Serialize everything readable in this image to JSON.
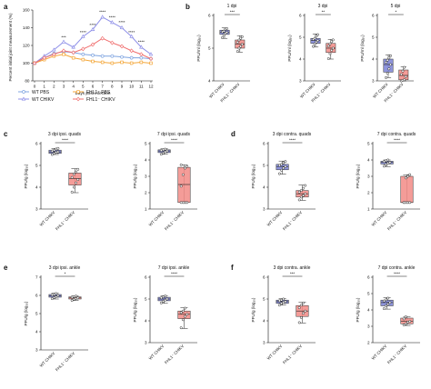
{
  "colors": {
    "wt_pbs": "#7fa4e0",
    "fhl1_pbs": "#f4a73a",
    "wt_chikv": "#8f90e8",
    "fhl1_chikv": "#f07070",
    "wt_box": "#7b83d6",
    "fhl1_box": "#f28b86"
  },
  "chart_data": [
    {
      "panel": "a",
      "type": "line",
      "ylabel": "Percent initial joint measurement (%)",
      "xlabel": "Days post infection",
      "ylim": [
        80,
        160
      ],
      "yticks": [
        "80",
        "100",
        "120",
        "140",
        "160"
      ],
      "x": [
        0,
        1,
        2,
        3,
        4,
        5,
        6,
        7,
        8,
        9,
        10,
        11,
        12
      ],
      "series": [
        {
          "name": "WT PBS",
          "color_key": "wt_pbs",
          "values": [
            100,
            106,
            111,
            113,
            112,
            110,
            109,
            108,
            108,
            107,
            106,
            106,
            105
          ]
        },
        {
          "name": "FHL1⁻ PBS",
          "color_key": "fhl1_pbs",
          "values": [
            100,
            104,
            108,
            110,
            106,
            104,
            102,
            101,
            100,
            101,
            100,
            101,
            100
          ]
        },
        {
          "name": "WT CHIKV",
          "color_key": "wt_chikv",
          "values": [
            100,
            108,
            115,
            124,
            118,
            130,
            138,
            152,
            146,
            140,
            130,
            118,
            110
          ]
        },
        {
          "name": "FHL1⁻ CHIKV",
          "color_key": "fhl1_chikv",
          "values": [
            100,
            106,
            110,
            114,
            112,
            116,
            121,
            128,
            123,
            119,
            114,
            110,
            105
          ]
        }
      ],
      "significance": [
        {
          "x": 3,
          "y": 129,
          "label": "***"
        },
        {
          "x": 5,
          "y": 135,
          "label": "****"
        },
        {
          "x": 6,
          "y": 143,
          "label": "****"
        },
        {
          "x": 7,
          "y": 158,
          "label": "****"
        },
        {
          "x": 8,
          "y": 152,
          "label": "****"
        },
        {
          "x": 9,
          "y": 146,
          "label": "****"
        },
        {
          "x": 10,
          "y": 135,
          "label": "****"
        },
        {
          "x": 11,
          "y": 124,
          "label": "****"
        }
      ],
      "legend": [
        "WT PBS",
        "FHL1⁻ PBS",
        "WT CHIKV",
        "FHL1⁻ CHIKV"
      ]
    },
    {
      "panel": "b",
      "type": "box",
      "title": "1 dpi",
      "ylabel": "PFU/ml (log₁₀)",
      "ylim": [
        4,
        6
      ],
      "yticks": [
        "4",
        "5",
        "6"
      ],
      "categories": [
        "WT CHIKV",
        "FHL1⁻ CHIKV"
      ],
      "significance": "***",
      "boxes": [
        {
          "min": 5.3,
          "q1": 5.42,
          "median": 5.48,
          "q3": 5.55,
          "max": 5.62,
          "points": [
            5.32,
            5.4,
            5.45,
            5.48,
            5.5,
            5.52,
            5.58,
            5.6
          ]
        },
        {
          "min": 4.88,
          "q1": 5.0,
          "median": 5.12,
          "q3": 5.25,
          "max": 5.38,
          "points": [
            4.9,
            5.0,
            5.05,
            5.12,
            5.18,
            5.25,
            5.3,
            5.35
          ]
        }
      ]
    },
    {
      "panel": "b",
      "type": "box",
      "title": "3 dpi",
      "ylabel": "PFU/ml (log₁₀)",
      "ylim": [
        3,
        6
      ],
      "yticks": [
        "3",
        "4",
        "5",
        "6"
      ],
      "categories": [
        "WT CHIKV",
        "FHL1⁻ CHIKV"
      ],
      "significance": "**",
      "boxes": [
        {
          "min": 4.55,
          "q1": 4.72,
          "median": 4.85,
          "q3": 4.95,
          "max": 5.15,
          "points": [
            4.58,
            4.7,
            4.78,
            4.85,
            4.9,
            4.95,
            5.05,
            5.12
          ]
        },
        {
          "min": 4.0,
          "q1": 4.3,
          "median": 4.5,
          "q3": 4.72,
          "max": 4.9,
          "points": [
            4.02,
            4.25,
            4.4,
            4.5,
            4.6,
            4.7,
            4.8,
            4.88
          ]
        }
      ]
    },
    {
      "panel": "b",
      "type": "box",
      "title": "5 dpi",
      "ylabel": "PFU/ml (log₁₀)",
      "ylim": [
        3,
        6
      ],
      "yticks": [
        "3",
        "4",
        "5",
        "6"
      ],
      "categories": [
        "WT CHIKV",
        "FHL1⁻ CHIKV"
      ],
      "significance": "*",
      "boxes": [
        {
          "min": 3.15,
          "q1": 3.4,
          "median": 3.75,
          "q3": 4.0,
          "max": 4.2,
          "points": [
            3.15,
            3.35,
            3.55,
            3.75,
            3.85,
            3.95,
            4.05,
            4.15
          ]
        },
        {
          "min": 3.0,
          "q1": 3.05,
          "median": 3.25,
          "q3": 3.5,
          "max": 3.65,
          "points": [
            3.0,
            3.02,
            3.05,
            3.2,
            3.3,
            3.45,
            3.62
          ]
        }
      ]
    },
    {
      "panel": "c",
      "type": "box",
      "title": "3 dpi ipsi. quads",
      "ylabel": "PFU/g (log₁₀)",
      "ylim": [
        3,
        6
      ],
      "yticks": [
        "3",
        "4",
        "5",
        "6"
      ],
      "categories": [
        "WT CHIKV",
        "FHL1⁻ CHIKV"
      ],
      "significance": "****",
      "boxes": [
        {
          "min": 5.5,
          "q1": 5.55,
          "median": 5.62,
          "q3": 5.7,
          "max": 5.78,
          "points": [
            5.5,
            5.55,
            5.6,
            5.62,
            5.66,
            5.7,
            5.75,
            5.78
          ]
        },
        {
          "min": 3.75,
          "q1": 4.1,
          "median": 4.4,
          "q3": 4.65,
          "max": 4.85,
          "points": [
            3.78,
            4.0,
            4.2,
            4.35,
            4.45,
            4.6,
            4.7,
            4.82
          ]
        }
      ]
    },
    {
      "panel": "c",
      "type": "box",
      "title": "7 dpi ipsi. quads",
      "ylabel": "PFU/g (log₁₀)",
      "ylim": [
        1,
        5
      ],
      "yticks": [
        "1",
        "2",
        "3",
        "4",
        "5"
      ],
      "categories": [
        "WT CHIKV",
        "FHL1⁻ CHIKV"
      ],
      "significance": "****",
      "boxes": [
        {
          "min": 4.35,
          "q1": 4.45,
          "median": 4.55,
          "q3": 4.62,
          "max": 4.68,
          "points": [
            4.35,
            4.42,
            4.5,
            4.55,
            4.58,
            4.62,
            4.66
          ]
        },
        {
          "min": 1.4,
          "q1": 1.4,
          "median": 2.5,
          "q3": 3.55,
          "max": 3.7,
          "points": [
            1.4,
            1.4,
            1.4,
            1.4,
            2.4,
            3.1,
            3.5,
            3.6,
            3.7
          ]
        }
      ]
    },
    {
      "panel": "d",
      "type": "box",
      "title": "3 dpi contra. quads",
      "ylabel": "PFU/g (log₁₀)",
      "ylim": [
        3,
        6
      ],
      "yticks": [
        "3",
        "4",
        "5",
        "6"
      ],
      "categories": [
        "WT CHIKV",
        "FHL1⁻ CHIKV"
      ],
      "significance": "****",
      "boxes": [
        {
          "min": 4.6,
          "q1": 4.8,
          "median": 4.95,
          "q3": 5.05,
          "max": 5.2,
          "points": [
            4.62,
            4.78,
            4.88,
            4.95,
            5.0,
            5.05,
            5.12,
            5.18
          ]
        },
        {
          "min": 3.4,
          "q1": 3.55,
          "median": 3.7,
          "q3": 3.85,
          "max": 4.1,
          "points": [
            3.42,
            3.55,
            3.62,
            3.7,
            3.78,
            3.85,
            3.95,
            4.08
          ]
        }
      ]
    },
    {
      "panel": "d",
      "type": "box",
      "title": "7 dpi contra. quads",
      "ylabel": "PFU/g (log₁₀)",
      "ylim": [
        1,
        5
      ],
      "yticks": [
        "1",
        "2",
        "3",
        "4",
        "5"
      ],
      "categories": [
        "WT CHIKV",
        "FHL1⁻ CHIKV"
      ],
      "significance": "****",
      "boxes": [
        {
          "min": 3.6,
          "q1": 3.75,
          "median": 3.85,
          "q3": 3.92,
          "max": 4.0,
          "points": [
            3.62,
            3.72,
            3.8,
            3.85,
            3.9,
            3.95,
            4.0
          ]
        },
        {
          "min": 1.4,
          "q1": 1.4,
          "median": 1.4,
          "q3": 3.0,
          "max": 3.1,
          "points": [
            1.4,
            1.4,
            1.4,
            1.4,
            1.4,
            2.9,
            3.0,
            3.1
          ]
        }
      ]
    },
    {
      "panel": "e",
      "type": "box",
      "title": "3 dpi ipsi. ankle",
      "ylabel": "PFU/g (log₁₀)",
      "ylim": [
        3,
        7
      ],
      "yticks": [
        "3",
        "4",
        "5",
        "6",
        "7"
      ],
      "categories": [
        "WT CHIKV",
        "FHL1⁻ CHIKV"
      ],
      "significance": "*",
      "boxes": [
        {
          "min": 5.8,
          "q1": 5.9,
          "median": 5.98,
          "q3": 6.05,
          "max": 6.12,
          "points": [
            5.82,
            5.88,
            5.92,
            5.98,
            6.02,
            6.05,
            6.1
          ]
        },
        {
          "min": 5.72,
          "q1": 5.8,
          "median": 5.86,
          "q3": 5.92,
          "max": 5.97,
          "points": [
            5.72,
            5.78,
            5.82,
            5.86,
            5.9,
            5.93,
            5.96
          ]
        }
      ]
    },
    {
      "panel": "e",
      "type": "box",
      "title": "7 dpi ipsi. ankle",
      "ylabel": "PFU/g (log₁₀)",
      "ylim": [
        3,
        6
      ],
      "yticks": [
        "3",
        "4",
        "5",
        "6"
      ],
      "categories": [
        "WT CHIKV",
        "FHL1⁻ CHIKV"
      ],
      "significance": "****",
      "boxes": [
        {
          "min": 4.8,
          "q1": 4.92,
          "median": 5.0,
          "q3": 5.08,
          "max": 5.15,
          "points": [
            4.82,
            4.9,
            4.95,
            5.0,
            5.05,
            5.1,
            5.14
          ]
        },
        {
          "min": 3.65,
          "q1": 4.1,
          "median": 4.3,
          "q3": 4.45,
          "max": 4.6,
          "points": [
            3.68,
            4.05,
            4.2,
            4.3,
            4.38,
            4.45,
            4.58
          ]
        }
      ]
    },
    {
      "panel": "f",
      "type": "box",
      "title": "3 dpi contra. ankle",
      "ylabel": "PFU/g (log₁₀)",
      "ylim": [
        3,
        6
      ],
      "yticks": [
        "3",
        "4",
        "5",
        "6"
      ],
      "categories": [
        "WT CHIKV",
        "FHL1⁻ CHIKV"
      ],
      "significance": "***",
      "boxes": [
        {
          "min": 4.72,
          "q1": 4.8,
          "median": 4.88,
          "q3": 4.95,
          "max": 5.02,
          "points": [
            4.72,
            4.8,
            4.85,
            4.88,
            4.92,
            4.95,
            5.0
          ]
        },
        {
          "min": 3.9,
          "q1": 4.2,
          "median": 4.45,
          "q3": 4.7,
          "max": 4.85,
          "points": [
            3.92,
            4.15,
            4.35,
            4.45,
            4.6,
            4.72,
            4.82
          ]
        }
      ]
    },
    {
      "panel": "f",
      "type": "box",
      "title": "7 dpi contra. ankle",
      "ylabel": "PFU/g (log₁₀)",
      "ylim": [
        2,
        6
      ],
      "yticks": [
        "2",
        "3",
        "4",
        "5",
        "6"
      ],
      "categories": [
        "WT CHIKV",
        "FHL1⁻ CHIKV"
      ],
      "significance": "****",
      "boxes": [
        {
          "min": 4.05,
          "q1": 4.25,
          "median": 4.45,
          "q3": 4.6,
          "max": 4.75,
          "points": [
            4.08,
            4.25,
            4.35,
            4.45,
            4.55,
            4.62,
            4.72
          ]
        },
        {
          "min": 3.05,
          "q1": 3.15,
          "median": 3.3,
          "q3": 3.5,
          "max": 3.6,
          "points": [
            3.08,
            3.15,
            3.25,
            3.3,
            3.45,
            3.58
          ]
        }
      ]
    }
  ]
}
